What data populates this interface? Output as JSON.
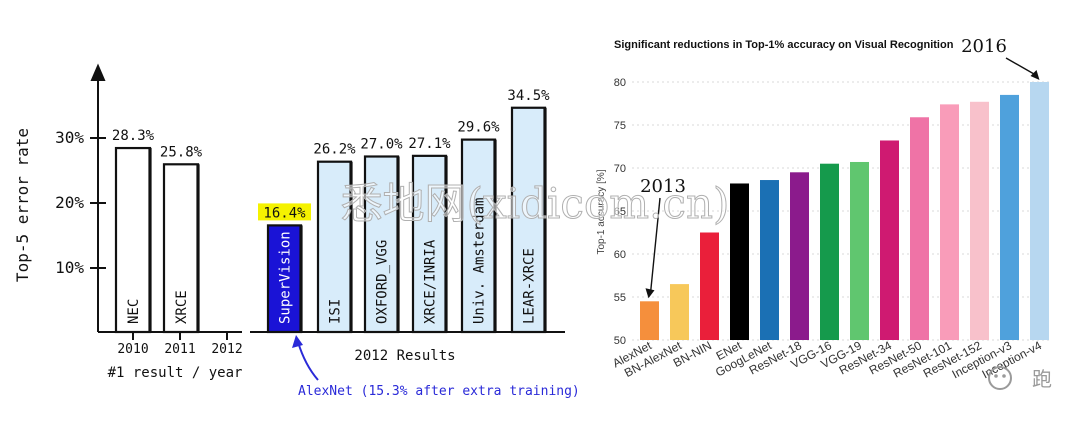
{
  "chart_data": [
    {
      "type": "bar",
      "ylabel": "Top-5 error rate",
      "xlabel": "#1 result / year",
      "ylim": [
        0,
        40
      ],
      "yticks": [
        "10%",
        "20%",
        "30%"
      ],
      "ytick_values": [
        10,
        20,
        30
      ],
      "years": [
        "2010",
        "2011",
        "2012"
      ],
      "categories": [
        "NEC",
        "XRCE"
      ],
      "values": [
        28.3,
        25.8
      ],
      "value_labels": [
        "28.3%",
        "25.8%"
      ]
    },
    {
      "type": "bar",
      "xlabel": "2012 Results",
      "ylim": [
        0,
        40
      ],
      "categories": [
        "SuperVision",
        "ISI",
        "OXFORD_VGG",
        "XRCE/INRIA",
        "Univ. Amsterdam",
        "LEAR-XRCE"
      ],
      "values": [
        16.4,
        26.2,
        27.0,
        27.1,
        29.6,
        34.5
      ],
      "value_labels": [
        "16.4%",
        "26.2%",
        "27.0%",
        "27.1%",
        "29.6%",
        "34.5%"
      ],
      "highlight": "SuperVision",
      "annotation": "AlexNet (15.3% after extra training)"
    },
    {
      "type": "bar",
      "title": "Significant reductions in Top-1% accuracy on Visual Recognition",
      "ylabel": "Top-1 accuracy [%]",
      "ylim": [
        50,
        82
      ],
      "yticks": [
        50,
        55,
        60,
        65,
        70,
        75,
        80
      ],
      "grid": true,
      "categories": [
        "AlexNet",
        "BN-AlexNet",
        "BN-NIN",
        "ENet",
        "GoogLeNet",
        "ResNet-18",
        "VGG-16",
        "VGG-19",
        "ResNet-34",
        "ResNet-50",
        "ResNet-101",
        "ResNet-152",
        "Inception-v3",
        "Inception-v4"
      ],
      "values": [
        54.5,
        56.5,
        62.5,
        68.2,
        68.6,
        69.5,
        70.5,
        70.7,
        73.2,
        75.9,
        77.4,
        77.7,
        78.5,
        80.0
      ],
      "colors": [
        "#f58f3c",
        "#f7c85a",
        "#ea1f3a",
        "#000000",
        "#1b70b4",
        "#8b1b8c",
        "#159a4c",
        "#60c66f",
        "#cf1a71",
        "#ef73a6",
        "#f99cb9",
        "#f8c1cb",
        "#4fa1dc",
        "#b7d7f0"
      ],
      "annotations": [
        {
          "text": "2013",
          "target": "AlexNet"
        },
        {
          "text": "2016",
          "target": "Inception-v4"
        }
      ]
    }
  ],
  "watermarks": {
    "center": "悉地网(xidicom.cn)",
    "corner_logo": "公众号",
    "corner_text": "跑"
  }
}
